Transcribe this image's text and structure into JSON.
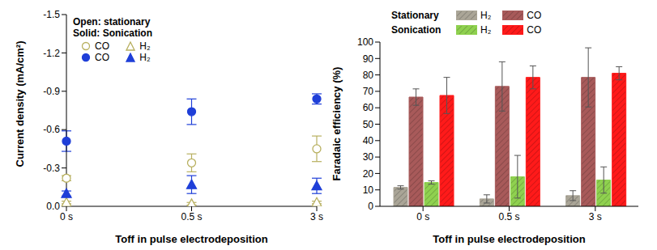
{
  "chart_data": [
    {
      "type": "scatter",
      "x_label": "Toff in pulse electrodeposition",
      "y_label": "Current density (mA/cm²)",
      "annotations": [
        "Open: stationary",
        "Solid: Sonication"
      ],
      "legend": "upper left",
      "categories": [
        "0 s",
        "0.5 s",
        "3 s"
      ],
      "ylim": [
        0,
        -1.5
      ],
      "yticks": [
        {
          "value": 0,
          "label": "0.0"
        },
        -0.3,
        -0.6,
        -0.9,
        -1.2,
        -1.5
      ],
      "series": [
        {
          "name": "CO",
          "color": "#b8b060",
          "marker": "open_circle",
          "values": [
            -0.22,
            -0.34,
            -0.45
          ],
          "errors": [
            0.02,
            0.07,
            0.1
          ]
        },
        {
          "name": "H₂",
          "color": "#b8b060",
          "marker": "open_triangle",
          "values": [
            -0.03,
            -0.02,
            -0.03
          ],
          "errors": [
            0.01,
            0.01,
            0.01
          ]
        },
        {
          "name": "CO",
          "color": "#1f3fd8",
          "marker": "circle",
          "values": [
            -0.51,
            -0.74,
            -0.84
          ],
          "errors": [
            0.08,
            0.1,
            0.04
          ]
        },
        {
          "name": "H₂",
          "color": "#1f3fd8",
          "marker": "triangle",
          "values": [
            -0.1,
            -0.17,
            -0.16
          ],
          "errors": [
            0.02,
            0.07,
            0.06
          ]
        }
      ]
    },
    {
      "type": "bar",
      "x_label": "Toff in pulse electrodeposition",
      "y_label": "Faradaic efficiency (%)",
      "legend": "top",
      "categories": [
        "0 s",
        "0.5 s",
        "3 s"
      ],
      "ylim": [
        0,
        100
      ],
      "yticks": [
        0,
        10,
        20,
        30,
        40,
        50,
        60,
        70,
        80,
        90,
        100
      ],
      "series": [
        {
          "name": "H₂",
          "group": "Stationary",
          "color": "#aaa597",
          "values": [
            11.5,
            4.5,
            6.5
          ],
          "errors": [
            1,
            2.5,
            3
          ]
        },
        {
          "name": "CO",
          "group": "Stationary",
          "color": "#a85a5a",
          "values": [
            66.5,
            73,
            78.5
          ],
          "errors": [
            5,
            15,
            18
          ]
        },
        {
          "name": "H₂",
          "group": "Sonication",
          "color": "#8fd14f",
          "values": [
            14.5,
            18,
            16
          ],
          "errors": [
            1,
            13,
            8
          ]
        },
        {
          "name": "CO",
          "group": "Sonication",
          "color": "#ff1a1a",
          "values": [
            67.5,
            78.5,
            81
          ],
          "errors": [
            11,
            7,
            4
          ]
        }
      ]
    }
  ]
}
